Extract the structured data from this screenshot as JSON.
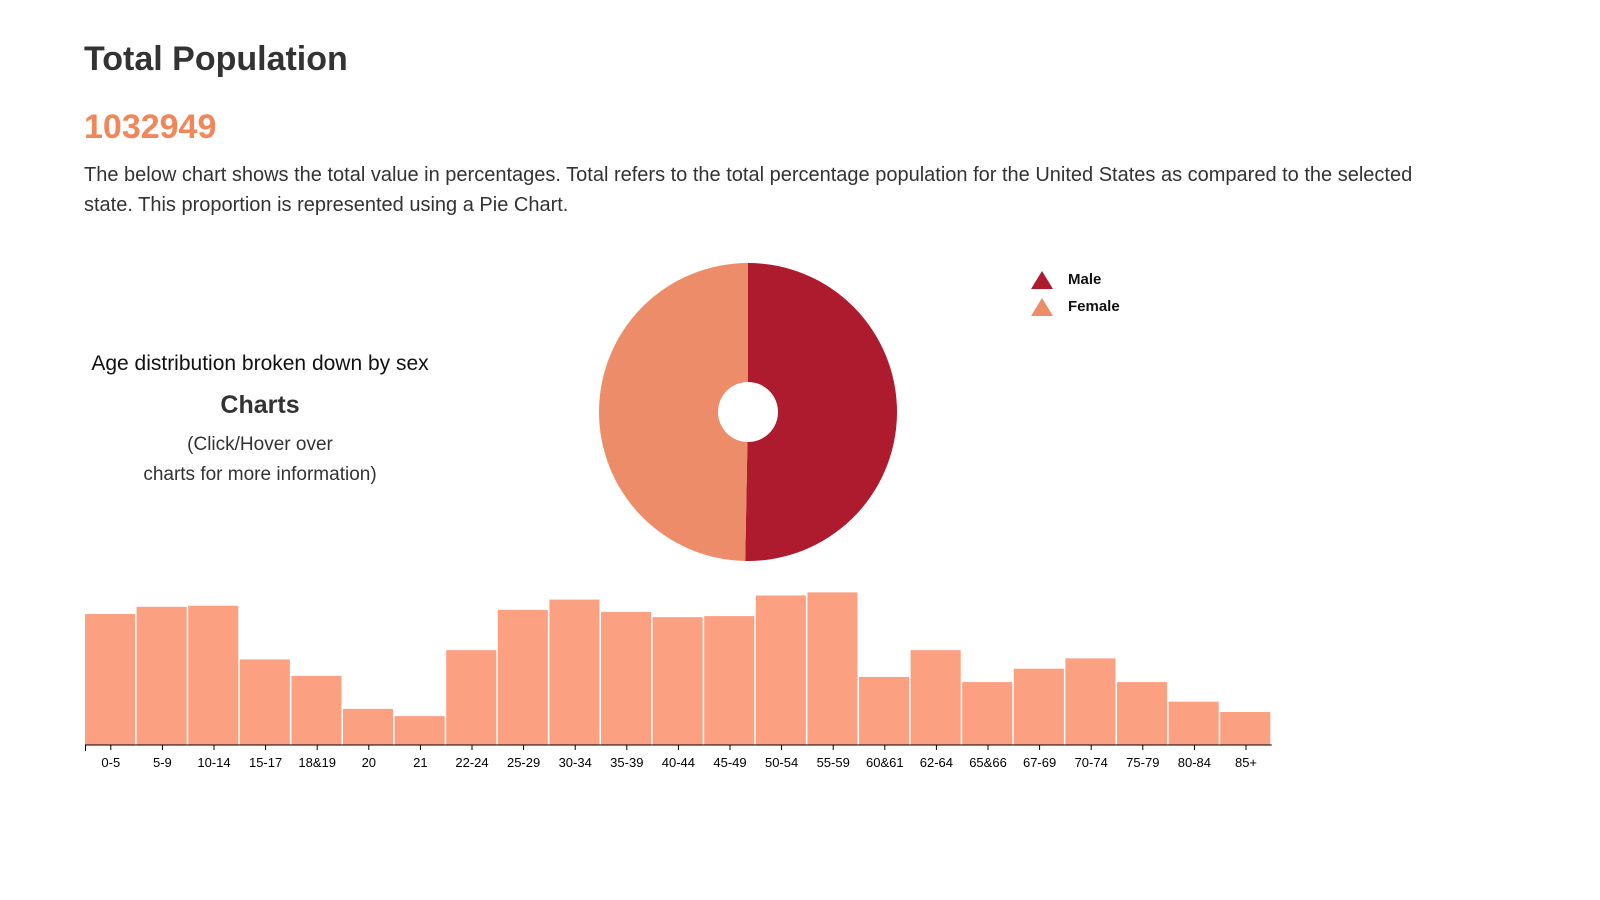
{
  "header": {
    "title": "Total Population",
    "total_value": "1032949",
    "description": "The below chart shows the total value in percentages. Total refers to the total percentage population for the United States as compared to the selected state. This proportion is represented using a Pie Chart."
  },
  "side_panel": {
    "subtitle": "Age distribution broken down by sex",
    "heading": "Charts",
    "note_line1": "(Click/Hover over",
    "note_line2": "charts for more information)"
  },
  "colors": {
    "accent": "#f0875a",
    "male": "#ae1a2e",
    "female": "#ec8c68",
    "bar": "#fca082"
  },
  "icons": {
    "legend_marker": "triangle-icon"
  },
  "chart_data": [
    {
      "type": "pie",
      "style": "donut",
      "title": "",
      "legend_position": "top-right",
      "slices": [
        {
          "name": "Male",
          "value": 50.3
        },
        {
          "name": "Female",
          "value": 49.7
        }
      ]
    },
    {
      "type": "bar",
      "title": "",
      "xlabel": "",
      "ylabel": "",
      "y_axis_shown": false,
      "grid": false,
      "categories": [
        "0-5",
        "5-9",
        "10-14",
        "15-17",
        "18&19",
        "20",
        "21",
        "22-24",
        "25-29",
        "30-34",
        "35-39",
        "40-44",
        "45-49",
        "50-54",
        "55-59",
        "60&61",
        "62-64",
        "65&66",
        "67-69",
        "70-74",
        "75-79",
        "80-84",
        "85+"
      ],
      "values": [
        127,
        134,
        135,
        83,
        67,
        35,
        28,
        92,
        131,
        141,
        129,
        124,
        125,
        145,
        148,
        66,
        92,
        61,
        74,
        84,
        61,
        42,
        32
      ],
      "ylim": [
        0,
        160
      ]
    }
  ]
}
